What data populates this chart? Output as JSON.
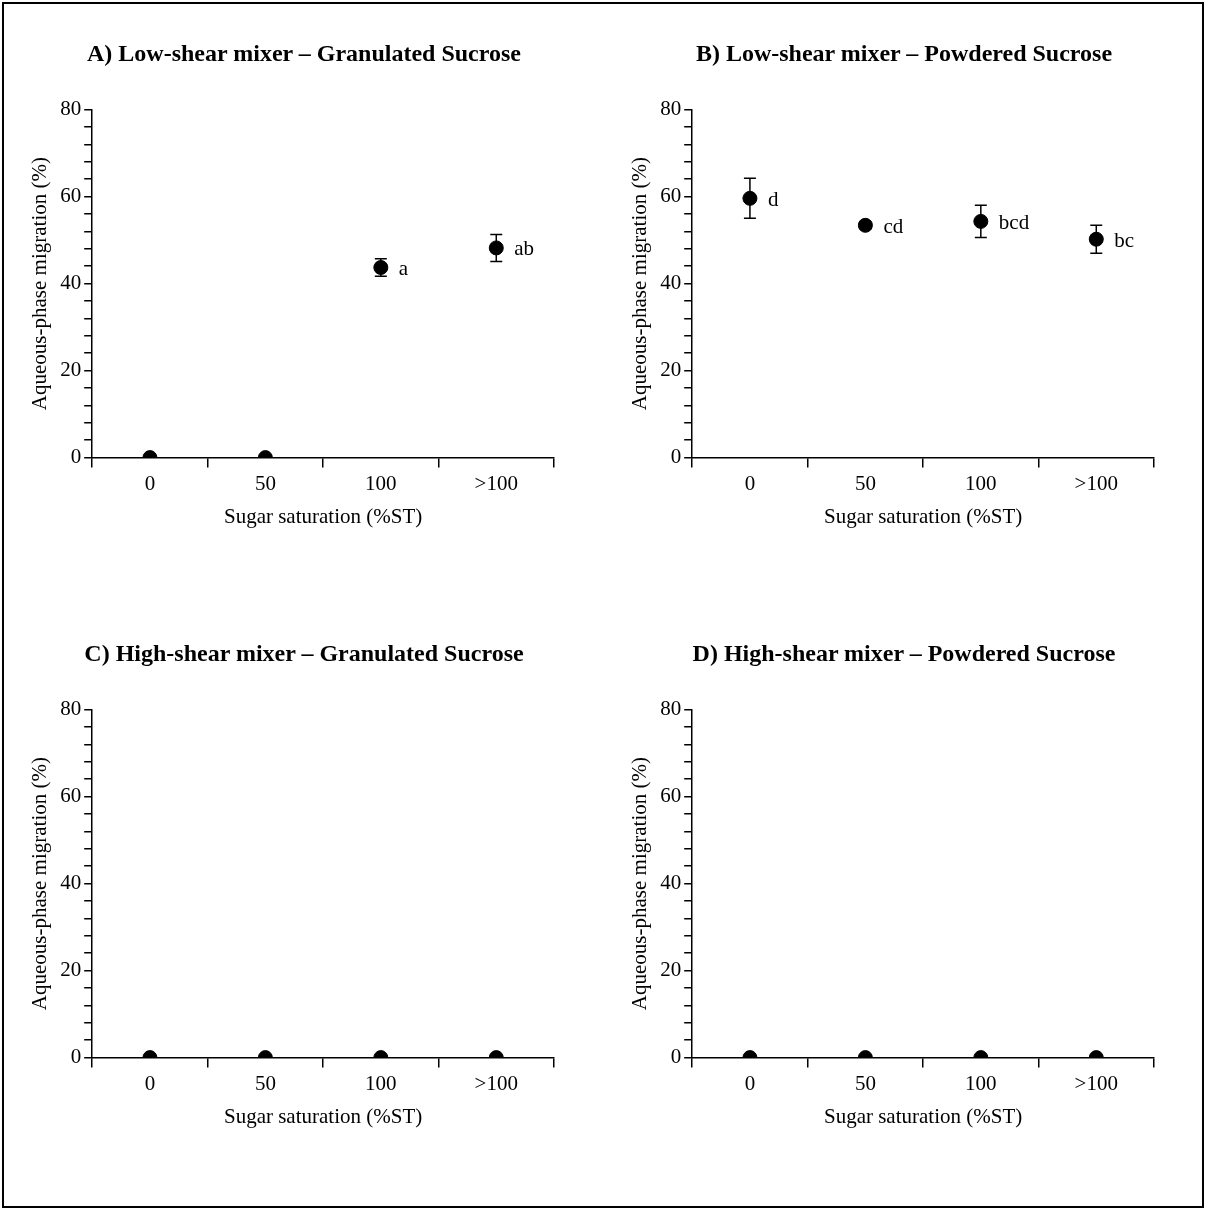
{
  "chart_data": [
    {
      "type": "scatter",
      "title": "A) Low-shear mixer – Granulated Sucrose",
      "xlabel": "Sugar saturation (%ST)",
      "ylabel": "Aqueous-phase migration (%)",
      "categories": [
        "0",
        "50",
        "100",
        ">100"
      ],
      "values": [
        0,
        0,
        43.7,
        48.2
      ],
      "errors": [
        null,
        null,
        2,
        3.1
      ],
      "color": "#000000",
      "marker": "circle",
      "ylim": [
        0,
        80
      ],
      "yticks": [
        0,
        {
          "value": 4,
          "label": null
        },
        {
          "value": 8,
          "label": null
        },
        {
          "value": 12,
          "label": null
        },
        {
          "value": 16,
          "label": null
        },
        20,
        {
          "value": 24,
          "label": null
        },
        {
          "value": 28,
          "label": null
        },
        {
          "value": 32,
          "label": null
        },
        {
          "value": 36,
          "label": null
        },
        40,
        {
          "value": 44,
          "label": null
        },
        {
          "value": 48,
          "label": null
        },
        {
          "value": 52,
          "label": null
        },
        {
          "value": 56,
          "label": null
        },
        60,
        {
          "value": 64,
          "label": null
        },
        {
          "value": 68,
          "label": null
        },
        {
          "value": 72,
          "label": null
        },
        {
          "value": 76,
          "label": null
        },
        80
      ],
      "annotations": [
        {
          "text": "a",
          "x": "100",
          "y": 43.7
        },
        {
          "text": "ab",
          "x": ">100",
          "y": 48.2
        }
      ]
    },
    {
      "type": "scatter",
      "title": "B) Low-shear mixer – Powdered Sucrose",
      "xlabel": "Sugar saturation (%ST)",
      "ylabel": "Aqueous-phase migration (%)",
      "categories": [
        "0",
        "50",
        "100",
        ">100"
      ],
      "values": [
        59.6,
        53.4,
        54.3,
        50.2
      ],
      "errors": [
        4.6,
        0.8,
        3.7,
        3.2
      ],
      "color": "#000000",
      "marker": "circle",
      "ylim": [
        0,
        80
      ],
      "yticks": [
        0,
        {
          "value": 4,
          "label": null
        },
        {
          "value": 8,
          "label": null
        },
        {
          "value": 12,
          "label": null
        },
        {
          "value": 16,
          "label": null
        },
        20,
        {
          "value": 24,
          "label": null
        },
        {
          "value": 28,
          "label": null
        },
        {
          "value": 32,
          "label": null
        },
        {
          "value": 36,
          "label": null
        },
        40,
        {
          "value": 44,
          "label": null
        },
        {
          "value": 48,
          "label": null
        },
        {
          "value": 52,
          "label": null
        },
        {
          "value": 56,
          "label": null
        },
        60,
        {
          "value": 64,
          "label": null
        },
        {
          "value": 68,
          "label": null
        },
        {
          "value": 72,
          "label": null
        },
        {
          "value": 76,
          "label": null
        },
        80
      ],
      "annotations": [
        {
          "text": "d",
          "x": "0",
          "y": 59.6
        },
        {
          "text": "cd",
          "x": "50",
          "y": 53.4
        },
        {
          "text": "bcd",
          "x": "100",
          "y": 54.3
        },
        {
          "text": "bc",
          "x": ">100",
          "y": 50.2
        }
      ]
    },
    {
      "type": "scatter",
      "title": "C) High-shear mixer – Granulated Sucrose",
      "xlabel": "Sugar saturation (%ST)",
      "ylabel": "Aqueous-phase migration (%)",
      "categories": [
        "0",
        "50",
        "100",
        ">100"
      ],
      "values": [
        0,
        0,
        0,
        0
      ],
      "color": "#000000",
      "marker": "circle",
      "ylim": [
        0,
        80
      ],
      "yticks": [
        0,
        {
          "value": 4,
          "label": null
        },
        {
          "value": 8,
          "label": null
        },
        {
          "value": 12,
          "label": null
        },
        {
          "value": 16,
          "label": null
        },
        20,
        {
          "value": 24,
          "label": null
        },
        {
          "value": 28,
          "label": null
        },
        {
          "value": 32,
          "label": null
        },
        {
          "value": 36,
          "label": null
        },
        40,
        {
          "value": 44,
          "label": null
        },
        {
          "value": 48,
          "label": null
        },
        {
          "value": 52,
          "label": null
        },
        {
          "value": 56,
          "label": null
        },
        60,
        {
          "value": 64,
          "label": null
        },
        {
          "value": 68,
          "label": null
        },
        {
          "value": 72,
          "label": null
        },
        {
          "value": 76,
          "label": null
        },
        80
      ]
    },
    {
      "type": "scatter",
      "title": "D) High-shear mixer – Powdered Sucrose",
      "xlabel": "Sugar saturation (%ST)",
      "ylabel": "Aqueous-phase migration (%)",
      "categories": [
        "0",
        "50",
        "100",
        ">100"
      ],
      "values": [
        0,
        0,
        0,
        0
      ],
      "color": "#000000",
      "marker": "circle",
      "ylim": [
        0,
        80
      ],
      "yticks": [
        0,
        {
          "value": 4,
          "label": null
        },
        {
          "value": 8,
          "label": null
        },
        {
          "value": 12,
          "label": null
        },
        {
          "value": 16,
          "label": null
        },
        20,
        {
          "value": 24,
          "label": null
        },
        {
          "value": 28,
          "label": null
        },
        {
          "value": 32,
          "label": null
        },
        {
          "value": 36,
          "label": null
        },
        40,
        {
          "value": 44,
          "label": null
        },
        {
          "value": 48,
          "label": null
        },
        {
          "value": 52,
          "label": null
        },
        {
          "value": 56,
          "label": null
        },
        60,
        {
          "value": 64,
          "label": null
        },
        {
          "value": 68,
          "label": null
        },
        {
          "value": 72,
          "label": null
        },
        {
          "value": 76,
          "label": null
        },
        80
      ]
    }
  ]
}
